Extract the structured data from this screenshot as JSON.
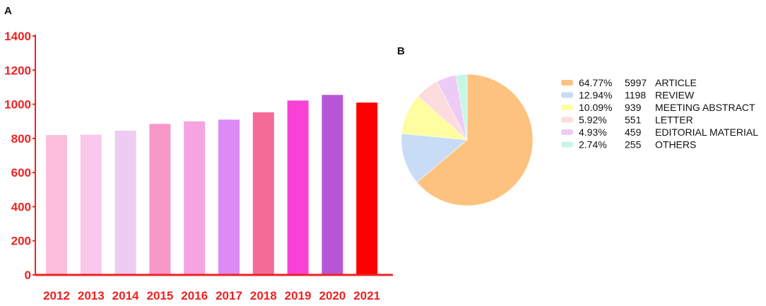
{
  "panels": {
    "a_label": "A",
    "b_label": "B"
  },
  "chart_data": [
    {
      "type": "bar",
      "categories": [
        "2012",
        "2013",
        "2014",
        "2015",
        "2016",
        "2017",
        "2018",
        "2019",
        "2020",
        "2021"
      ],
      "values": [
        820,
        822,
        845,
        885,
        900,
        910,
        953,
        1022,
        1055,
        1010
      ],
      "colors": [
        "#fbbfdb",
        "#f9c8ec",
        "#eecbf2",
        "#f798c8",
        "#f6a3e2",
        "#dd8af4",
        "#f56b98",
        "#f842d5",
        "#b856d8",
        "#ff0000"
      ],
      "ylim": [
        0,
        1400
      ],
      "yticks": [
        0,
        200,
        400,
        600,
        800,
        1000,
        1200,
        1400
      ],
      "axis_color": "#ee2222",
      "title": "",
      "xlabel": "",
      "ylabel": ""
    },
    {
      "type": "pie",
      "slices": [
        {
          "label": "ARTICLE",
          "percent": "64.77%",
          "count": "5997",
          "value": 5997,
          "color": "#fec27f"
        },
        {
          "label": "REVIEW",
          "percent": "12.94%",
          "count": "1198",
          "value": 1198,
          "color": "#c8dcf6"
        },
        {
          "label": "MEETING ABSTRACT",
          "percent": "10.09%",
          "count": "939",
          "value": 939,
          "color": "#fefd9f"
        },
        {
          "label": "LETTER",
          "percent": "5.92%",
          "count": "551",
          "value": 551,
          "color": "#fddcde"
        },
        {
          "label": "EDITORIAL MATERIAL",
          "percent": "4.93%",
          "count": "459",
          "value": 459,
          "color": "#ecccf6"
        },
        {
          "label": "OTHERS",
          "percent": "2.74%",
          "count": "255",
          "value": 255,
          "color": "#c8f6e6"
        }
      ],
      "legend_position": "right"
    }
  ]
}
